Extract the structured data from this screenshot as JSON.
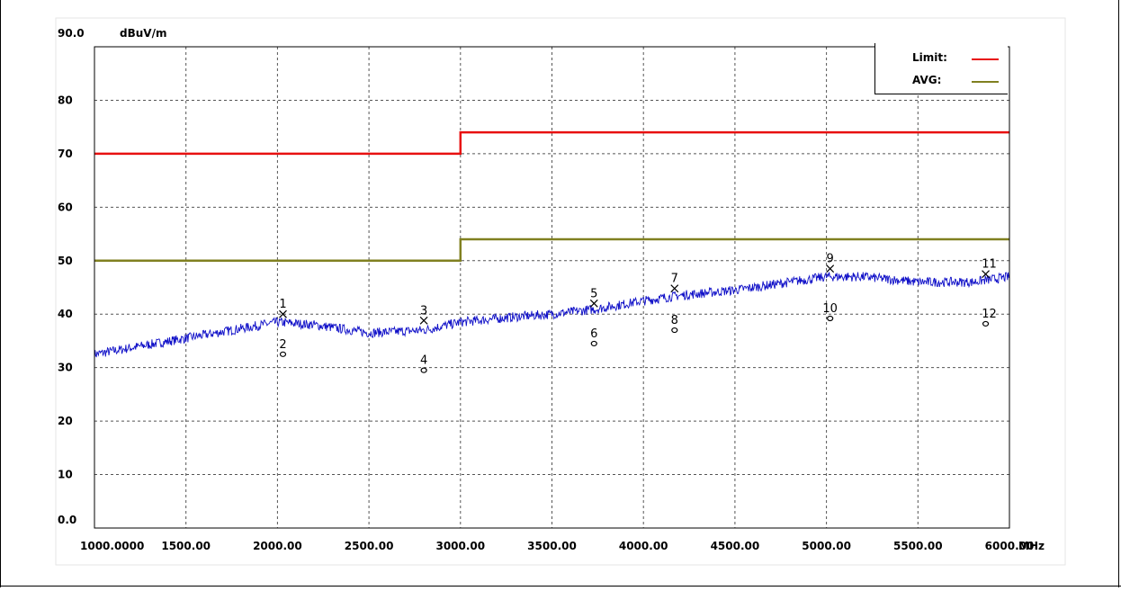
{
  "chart_data": {
    "type": "line",
    "title": "",
    "xlabel": "MHz",
    "ylabel": "dBuV/m",
    "xlim": [
      1000,
      6000
    ],
    "ylim": [
      0,
      90
    ],
    "y_top_label": "90.0",
    "y_bottom_label": "0.0",
    "y_ticks": [
      "80",
      "70",
      "60",
      "50",
      "40",
      "30",
      "20",
      "10"
    ],
    "y_tick_values": [
      80,
      70,
      60,
      50,
      40,
      30,
      20,
      10
    ],
    "x_ticks": [
      "1000.0000",
      "1500.00",
      "2000.00",
      "2500.00",
      "3000.00",
      "3500.00",
      "4000.00",
      "4500.00",
      "5000.00",
      "5500.00",
      "6000.00"
    ],
    "x_tick_values": [
      1000,
      1500,
      2000,
      2500,
      3000,
      3500,
      4000,
      4500,
      5000,
      5500,
      6000
    ],
    "grid": true,
    "legend_position": "top-right",
    "colors": {
      "limit": "#e81010",
      "avg": "#808020",
      "trace": "#1010c8"
    },
    "series": [
      {
        "name": "Limit:",
        "x": [
          1000,
          3000,
          3000,
          6000
        ],
        "y": [
          70,
          70,
          74,
          74
        ]
      },
      {
        "name": "AVG:",
        "x": [
          1000,
          3000,
          3000,
          6000
        ],
        "y": [
          50,
          50,
          54,
          54
        ]
      },
      {
        "x": [
          1000,
          1250,
          1500,
          1750,
          2000,
          2200,
          2500,
          2800,
          3000,
          3300,
          3500,
          3750,
          4000,
          4200,
          4500,
          4800,
          5000,
          5200,
          5500,
          5800,
          6000
        ],
        "y": [
          32.5,
          34.0,
          35.5,
          37.0,
          38.5,
          38.0,
          36.5,
          37.0,
          38.5,
          39.5,
          40.0,
          41.0,
          42.5,
          43.5,
          44.5,
          46.0,
          47.0,
          47.0,
          46.0,
          46.0,
          47.0
        ]
      }
    ],
    "markers": [
      {
        "label": "1",
        "x": 2030,
        "y": 40.0,
        "symbol": "x",
        "label_pos": "above"
      },
      {
        "label": "2",
        "x": 2030,
        "y": 32.5,
        "symbol": "o",
        "label_pos": "above"
      },
      {
        "label": "3",
        "x": 2800,
        "y": 38.8,
        "symbol": "x",
        "label_pos": "above"
      },
      {
        "label": "4",
        "x": 2800,
        "y": 29.5,
        "symbol": "o",
        "label_pos": "above"
      },
      {
        "label": "5",
        "x": 3730,
        "y": 42.0,
        "symbol": "x",
        "label_pos": "above"
      },
      {
        "label": "6",
        "x": 3730,
        "y": 34.5,
        "symbol": "o",
        "label_pos": "above"
      },
      {
        "label": "7",
        "x": 4170,
        "y": 44.8,
        "symbol": "x",
        "label_pos": "above"
      },
      {
        "label": "8",
        "x": 4170,
        "y": 37.0,
        "symbol": "o",
        "label_pos": "above"
      },
      {
        "label": "9",
        "x": 5020,
        "y": 48.5,
        "symbol": "x",
        "label_pos": "above"
      },
      {
        "label": "10",
        "x": 5020,
        "y": 39.2,
        "symbol": "o",
        "label_pos": "above"
      },
      {
        "label": "11",
        "x": 5870,
        "y": 47.5,
        "symbol": "x",
        "label_pos": "above-right"
      },
      {
        "label": "12",
        "x": 5870,
        "y": 38.2,
        "symbol": "o",
        "label_pos": "above-right"
      }
    ]
  }
}
